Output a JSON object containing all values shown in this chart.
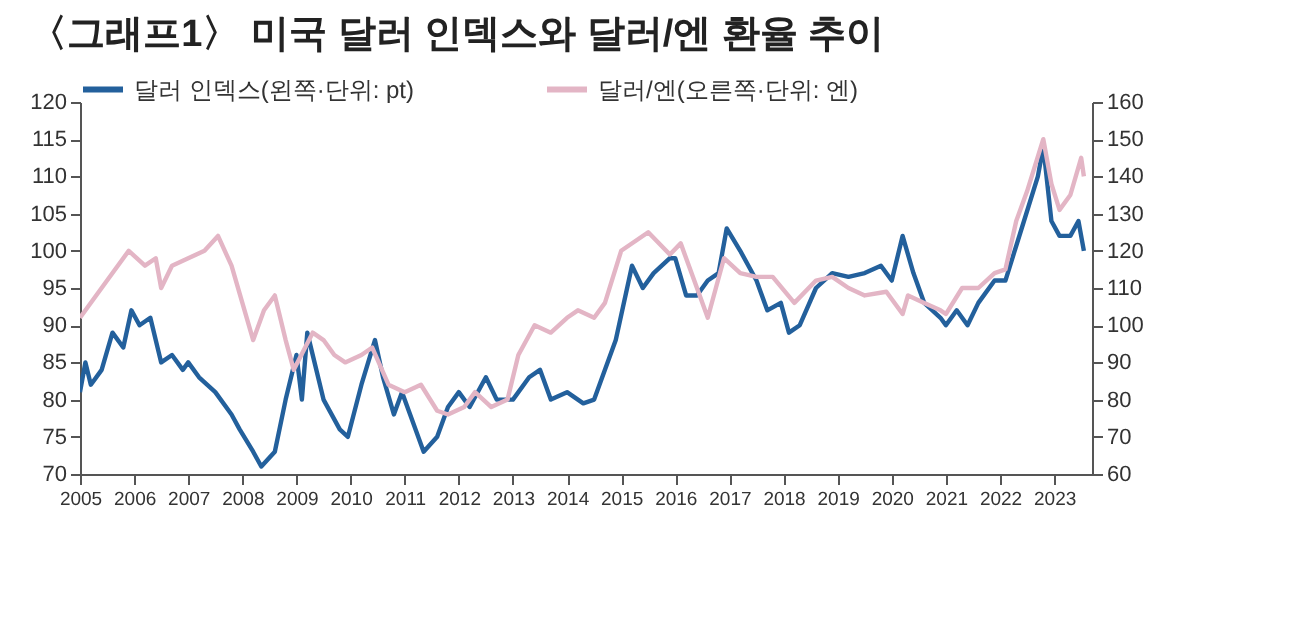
{
  "chart_data": {
    "type": "line",
    "title": "〈그래프1〉 미국 달러 인덱스와 달러/엔 환율 추이",
    "legend": "top",
    "grid": false,
    "xlim": [
      2005,
      2023.7
    ],
    "xticks": [
      2005,
      2006,
      2007,
      2008,
      2009,
      2010,
      2011,
      2012,
      2013,
      2014,
      2015,
      2016,
      2017,
      2018,
      2019,
      2020,
      2021,
      2022,
      2023
    ],
    "ylim": [
      70,
      120
    ],
    "yticks": [
      70,
      75,
      80,
      85,
      90,
      95,
      100,
      105,
      110,
      115,
      120
    ],
    "y2lim": [
      60,
      160
    ],
    "y2ticks": [
      60,
      70,
      80,
      90,
      100,
      110,
      120,
      130,
      140,
      150,
      160
    ],
    "series": [
      {
        "name": "달러 인덱스(왼쪽·단위: pt)",
        "color": "#23609c",
        "x": [
          2005.0,
          2005.1,
          2005.2,
          2005.4,
          2005.6,
          2005.8,
          2005.95,
          2006.1,
          2006.3,
          2006.5,
          2006.7,
          2006.9,
          2007.0,
          2007.2,
          2007.5,
          2007.8,
          2007.95,
          2008.2,
          2008.35,
          2008.6,
          2008.8,
          2009.0,
          2009.1,
          2009.2,
          2009.5,
          2009.8,
          2009.95,
          2010.2,
          2010.45,
          2010.6,
          2010.8,
          2010.95,
          2011.1,
          2011.35,
          2011.6,
          2011.8,
          2012.0,
          2012.2,
          2012.5,
          2012.7,
          2013.0,
          2013.3,
          2013.5,
          2013.7,
          2014.0,
          2014.3,
          2014.5,
          2014.7,
          2014.9,
          2015.2,
          2015.4,
          2015.6,
          2015.9,
          2016.0,
          2016.2,
          2016.4,
          2016.6,
          2016.8,
          2016.95,
          2017.2,
          2017.5,
          2017.7,
          2017.95,
          2018.1,
          2018.3,
          2018.6,
          2018.9,
          2019.2,
          2019.5,
          2019.8,
          2020.0,
          2020.2,
          2020.4,
          2020.6,
          2020.9,
          2021.0,
          2021.2,
          2021.4,
          2021.6,
          2021.9,
          2022.1,
          2022.4,
          2022.7,
          2022.8,
          2022.95,
          2023.1,
          2023.3,
          2023.45,
          2023.55
        ],
        "values": [
          81,
          85,
          82,
          84,
          89,
          87,
          92,
          90,
          91,
          85,
          86,
          84,
          85,
          83,
          81,
          78,
          76,
          73,
          71,
          73,
          80,
          86,
          80,
          89,
          80,
          76,
          75,
          82,
          88,
          83,
          78,
          81,
          78,
          73,
          75,
          79,
          81,
          79,
          83,
          80,
          80,
          83,
          84,
          80,
          81,
          79.5,
          80,
          84,
          88,
          98,
          95,
          97,
          99,
          99,
          94,
          94,
          96,
          97,
          103,
          100,
          96,
          92,
          93,
          89,
          90,
          95,
          97,
          96.5,
          97,
          98,
          96,
          102,
          97,
          93,
          91,
          90,
          92,
          90,
          93,
          96,
          96,
          103,
          110,
          114,
          104,
          102,
          102,
          104,
          100
        ]
      },
      {
        "name": "달러/엔(오른쪽·단위: 엔)",
        "color": "#e3b5c5",
        "axis": "y2",
        "x": [
          2005.0,
          2005.5,
          2005.9,
          2006.2,
          2006.4,
          2006.5,
          2006.7,
          2007.0,
          2007.3,
          2007.55,
          2007.8,
          2008.0,
          2008.2,
          2008.4,
          2008.6,
          2008.8,
          2008.95,
          2009.3,
          2009.5,
          2009.7,
          2009.9,
          2010.2,
          2010.4,
          2010.7,
          2011.0,
          2011.3,
          2011.6,
          2011.8,
          2012.1,
          2012.3,
          2012.6,
          2012.9,
          2013.1,
          2013.4,
          2013.7,
          2014.0,
          2014.2,
          2014.5,
          2014.7,
          2015.0,
          2015.5,
          2015.9,
          2016.1,
          2016.3,
          2016.6,
          2016.9,
          2017.2,
          2017.5,
          2017.8,
          2018.2,
          2018.6,
          2018.9,
          2019.2,
          2019.5,
          2019.9,
          2020.2,
          2020.3,
          2020.6,
          2020.9,
          2021.0,
          2021.3,
          2021.6,
          2021.9,
          2022.1,
          2022.3,
          2022.5,
          2022.8,
          2022.95,
          2023.1,
          2023.3,
          2023.5,
          2023.55
        ],
        "values": [
          102,
          112,
          120,
          116,
          118,
          110,
          116,
          118,
          120,
          124,
          116,
          106,
          96,
          104,
          108,
          96,
          88,
          98,
          96,
          92,
          90,
          92,
          94,
          84,
          82,
          84,
          77,
          76,
          78,
          82,
          78,
          80,
          92,
          100,
          98,
          102,
          104,
          102,
          106,
          120,
          125,
          119,
          122,
          114,
          102,
          118,
          114,
          113,
          113,
          106,
          112,
          113,
          110,
          108,
          109,
          103,
          108,
          106,
          104,
          103,
          110,
          110,
          114,
          115,
          128,
          136,
          150,
          138,
          131,
          135,
          145,
          140
        ]
      }
    ]
  }
}
